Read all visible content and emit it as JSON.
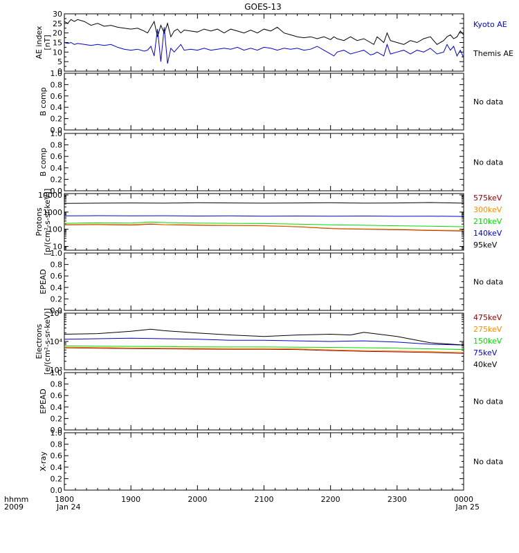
{
  "title": "GOES-13",
  "footer": {
    "time_label": "hhmm",
    "year_label": "2009",
    "start_date": "Jan 24",
    "end_date": "Jan 25"
  },
  "x_axis": {
    "ticks": [
      "1800",
      "1900",
      "2000",
      "2100",
      "2200",
      "2300",
      "0000"
    ],
    "range_hours": [
      18,
      24
    ]
  },
  "chart_data": [
    {
      "id": "ae",
      "type": "line",
      "ylabel_lines": [
        "AE index",
        "[nT]"
      ],
      "ylim": [
        0,
        30
      ],
      "yticks": [
        "0",
        "5",
        "10",
        "15",
        "20",
        "25",
        "30"
      ],
      "y_scale": "linear",
      "x_unit": "hours UT",
      "series": [
        {
          "name": "Kyoto AE",
          "color": "#0000cc",
          "x": [
            18.0,
            18.05,
            18.1,
            18.15,
            18.2,
            18.3,
            18.4,
            18.5,
            18.6,
            18.7,
            18.8,
            18.9,
            19.0,
            19.1,
            19.2,
            19.25,
            19.3,
            19.35,
            19.4,
            19.45,
            19.5,
            19.55,
            19.6,
            19.65,
            19.7,
            19.75,
            19.8,
            19.9,
            20.0,
            20.1,
            20.2,
            20.3,
            20.4,
            20.5,
            20.6,
            20.7,
            20.8,
            20.9,
            21.0,
            21.1,
            21.2,
            21.3,
            21.4,
            21.5,
            21.6,
            21.7,
            21.8,
            21.9,
            22.0,
            22.05,
            22.1,
            22.2,
            22.3,
            22.4,
            22.5,
            22.6,
            22.65,
            22.7,
            22.8,
            22.85,
            22.9,
            23.0,
            23.1,
            23.2,
            23.3,
            23.4,
            23.5,
            23.6,
            23.7,
            23.75,
            23.8,
            23.85,
            23.9,
            23.95,
            24.0
          ],
          "y": [
            15,
            14.5,
            15,
            14,
            14.5,
            14,
            13.5,
            14,
            13.5,
            14,
            12.5,
            11.5,
            11,
            11.5,
            10.5,
            11,
            13,
            8,
            22,
            5,
            23,
            4,
            12,
            10,
            12,
            14,
            11,
            11.5,
            11,
            12,
            11,
            11.5,
            12,
            11.5,
            12.5,
            11,
            12,
            11,
            12.5,
            12,
            11,
            12,
            11.5,
            12,
            11,
            11.5,
            13,
            11,
            9,
            8,
            10,
            11,
            9,
            10,
            11,
            8.5,
            9,
            10,
            8,
            14,
            9,
            10,
            11,
            9,
            11,
            10,
            12,
            9,
            10,
            14,
            11,
            13,
            8,
            11,
            7
          ]
        },
        {
          "name": "Themis AE",
          "color": "#000000",
          "x": [
            18.0,
            18.05,
            18.1,
            18.15,
            18.2,
            18.3,
            18.4,
            18.5,
            18.6,
            18.7,
            18.8,
            18.9,
            19.0,
            19.1,
            19.2,
            19.25,
            19.3,
            19.35,
            19.4,
            19.45,
            19.5,
            19.55,
            19.6,
            19.65,
            19.7,
            19.75,
            19.8,
            19.9,
            20.0,
            20.1,
            20.2,
            20.3,
            20.4,
            20.5,
            20.6,
            20.7,
            20.8,
            20.9,
            21.0,
            21.1,
            21.2,
            21.3,
            21.4,
            21.5,
            21.6,
            21.7,
            21.8,
            21.9,
            22.0,
            22.05,
            22.1,
            22.2,
            22.3,
            22.4,
            22.5,
            22.6,
            22.65,
            22.7,
            22.8,
            22.85,
            22.9,
            23.0,
            23.1,
            23.2,
            23.3,
            23.4,
            23.5,
            23.6,
            23.7,
            23.75,
            23.8,
            23.85,
            23.9,
            23.95,
            24.0
          ],
          "y": [
            26,
            25,
            27,
            26,
            27,
            26,
            24,
            25,
            23.5,
            24,
            23,
            22.5,
            22,
            22.5,
            21,
            20,
            23,
            26,
            18,
            24,
            20,
            25,
            18,
            21,
            22,
            20,
            21.5,
            21,
            20.5,
            22,
            21,
            22,
            20,
            22,
            21,
            20,
            21.5,
            20,
            22,
            21,
            23,
            20,
            19,
            18,
            17.5,
            18,
            17,
            18,
            16.5,
            18,
            17,
            16,
            18,
            16,
            17,
            15,
            14,
            18,
            15,
            20,
            16,
            15,
            14,
            16,
            15,
            17,
            18,
            14,
            16,
            18,
            19,
            17,
            18,
            21,
            19
          ]
        }
      ]
    },
    {
      "id": "bcomp1",
      "type": "line",
      "ylabel_lines": [
        "B comp"
      ],
      "ylim": [
        0,
        1
      ],
      "yticks": [
        "0.0",
        "0.2",
        "0.4",
        "0.6",
        "0.8",
        "1.0"
      ],
      "y_scale": "linear",
      "note": "No data",
      "series": []
    },
    {
      "id": "bcomp2",
      "type": "line",
      "ylabel_lines": [
        "B comp"
      ],
      "ylim": [
        0,
        1
      ],
      "yticks": [
        "0.0",
        "0.2",
        "0.4",
        "0.6",
        "0.8",
        "1.0"
      ],
      "y_scale": "linear",
      "note": "No data",
      "series": []
    },
    {
      "id": "protons",
      "type": "line",
      "ylabel_lines": [
        "Protons",
        "[p/(cm²-s-sr-keV)]"
      ],
      "ylim": [
        6,
        12000
      ],
      "yticks": [
        "10",
        "100",
        "1000",
        "10000"
      ],
      "ytick_values": [
        10,
        100,
        1000,
        10000
      ],
      "y_scale": "log",
      "series": [
        {
          "name": "575keV",
          "color": "#8b0000",
          "x": [
            18,
            18.5,
            19,
            19.3,
            19.5,
            20,
            20.5,
            21,
            21.5,
            22,
            22.5,
            23,
            23.5,
            24
          ],
          "y": [
            180,
            190,
            175,
            200,
            185,
            170,
            165,
            160,
            140,
            110,
            100,
            95,
            85,
            80
          ]
        },
        {
          "name": "300keV",
          "color": "#ff8c00",
          "x": [
            18,
            18.5,
            19,
            19.3,
            19.5,
            20,
            20.5,
            21,
            21.5,
            22,
            22.5,
            23,
            23.5,
            24
          ],
          "y": [
            190,
            200,
            185,
            210,
            190,
            180,
            170,
            165,
            145,
            115,
            105,
            100,
            90,
            85
          ]
        },
        {
          "name": "210keV",
          "color": "#00dd00",
          "x": [
            18,
            18.5,
            19,
            19.3,
            19.5,
            20,
            20.5,
            21,
            21.5,
            22,
            22.5,
            23,
            23.5,
            24
          ],
          "y": [
            220,
            240,
            230,
            260,
            245,
            230,
            220,
            215,
            200,
            180,
            170,
            160,
            150,
            140
          ]
        },
        {
          "name": "140keV",
          "color": "#0000cc",
          "x": [
            18,
            18.5,
            19,
            19.5,
            20,
            20.5,
            21,
            21.5,
            22,
            22.5,
            23,
            23.5,
            24
          ],
          "y": [
            600,
            620,
            600,
            610,
            590,
            600,
            580,
            590,
            580,
            590,
            570,
            580,
            560
          ]
        },
        {
          "name": "95keV",
          "color": "#000000",
          "x": [
            18,
            18.5,
            19,
            19.5,
            20,
            20.5,
            21,
            21.5,
            22,
            22.5,
            23,
            23.5,
            24
          ],
          "y": [
            3200,
            3300,
            3400,
            3300,
            3500,
            3400,
            3300,
            3400,
            3500,
            3300,
            3400,
            3600,
            3300
          ]
        }
      ]
    },
    {
      "id": "epead1",
      "type": "line",
      "ylabel_lines": [
        "EPEAD"
      ],
      "ylim": [
        0,
        1
      ],
      "yticks": [
        "0.0",
        "0.2",
        "0.4",
        "0.6",
        "0.8",
        "1.0"
      ],
      "y_scale": "linear",
      "note": "No data",
      "series": []
    },
    {
      "id": "electrons",
      "type": "line",
      "ylabel_lines": [
        "Electrons",
        "[e/(cm²-s-sr-keV)]"
      ],
      "ylim": [
        1000,
        100000
      ],
      "yticks": [
        "10³",
        "10⁴",
        "10⁵"
      ],
      "ytick_values": [
        1000,
        10000,
        100000
      ],
      "y_scale": "log",
      "series": [
        {
          "name": "475keV",
          "color": "#8b0000",
          "x": [
            18,
            18.5,
            19,
            19.5,
            20,
            20.5,
            21,
            21.5,
            22,
            22.5,
            23,
            23.5,
            24
          ],
          "y": [
            6000,
            5800,
            5600,
            5500,
            5400,
            5300,
            5300,
            5200,
            4800,
            4500,
            4300,
            4100,
            3800
          ]
        },
        {
          "name": "275keV",
          "color": "#ff8c00",
          "x": [
            18,
            18.5,
            19,
            19.5,
            20,
            20.5,
            21,
            21.5,
            22,
            22.5,
            23,
            23.5,
            24
          ],
          "y": [
            6300,
            6100,
            5900,
            5800,
            5700,
            5600,
            5600,
            5500,
            5100,
            4800,
            4600,
            4400,
            4100
          ]
        },
        {
          "name": "150keV",
          "color": "#00dd00",
          "x": [
            18,
            18.5,
            19,
            19.5,
            20,
            20.5,
            21,
            21.5,
            22,
            22.5,
            23,
            23.5,
            24
          ],
          "y": [
            7000,
            6800,
            6700,
            6600,
            6500,
            6400,
            6400,
            6300,
            6200,
            6000,
            5800,
            5500,
            5200
          ]
        },
        {
          "name": "75keV",
          "color": "#0000cc",
          "x": [
            18,
            18.5,
            19,
            19.5,
            20,
            20.5,
            21,
            21.5,
            22,
            22.5,
            23,
            23.5,
            24
          ],
          "y": [
            12000,
            12500,
            13000,
            12500,
            12000,
            11000,
            11000,
            10500,
            10000,
            10500,
            9500,
            8000,
            7500
          ]
        },
        {
          "name": "40keV",
          "color": "#000000",
          "x": [
            18,
            18.5,
            19,
            19.3,
            19.5,
            20,
            20.5,
            21,
            21.5,
            22,
            22.3,
            22.5,
            23,
            23.5,
            24
          ],
          "y": [
            18000,
            19000,
            23000,
            27000,
            24000,
            20000,
            17000,
            15000,
            17000,
            18000,
            17000,
            21000,
            15000,
            9000,
            7500
          ]
        }
      ]
    },
    {
      "id": "epead2",
      "type": "line",
      "ylabel_lines": [
        "EPEAD"
      ],
      "ylim": [
        0,
        1
      ],
      "yticks": [
        "0.0",
        "0.2",
        "0.4",
        "0.6",
        "0.8",
        "1.0"
      ],
      "y_scale": "linear",
      "note": "No data",
      "series": []
    },
    {
      "id": "xray",
      "type": "line",
      "ylabel_lines": [
        "X-ray"
      ],
      "ylim": [
        0,
        1
      ],
      "yticks": [
        "0.0",
        "0.2",
        "0.4",
        "0.6",
        "0.8",
        "1.0"
      ],
      "y_scale": "linear",
      "note": "No data",
      "series": []
    }
  ]
}
